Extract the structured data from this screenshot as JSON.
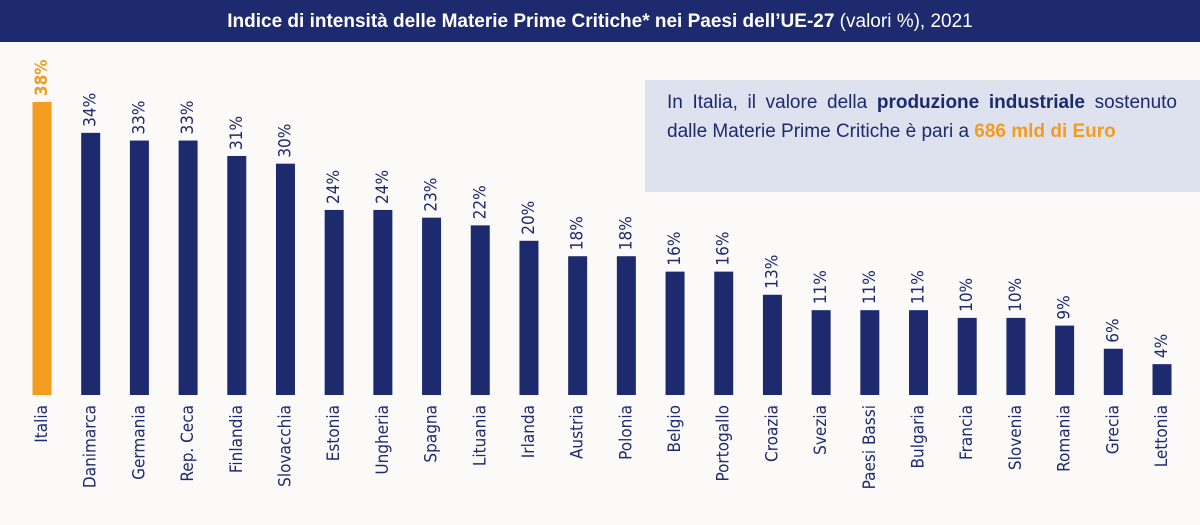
{
  "chart_data": {
    "type": "bar",
    "title": "Indice di intensità delle Materie Prime Critiche* nei Paesi dell’UE-27",
    "subtitle": " (valori %), 2021",
    "categories": [
      "Italia",
      "Danimarca",
      "Germania",
      "Rep. Ceca",
      "Finlandia",
      "Slovacchia",
      "Estonia",
      "Ungheria",
      "Spagna",
      "Lituania",
      "Irlanda",
      "Austria",
      "Polonia",
      "Belgio",
      "Portogallo",
      "Croazia",
      "Svezia",
      "Paesi Bassi",
      "Bulgaria",
      "Francia",
      "Slovenia",
      "Romania",
      "Grecia",
      "Lettonia"
    ],
    "values": [
      38,
      34,
      33,
      33,
      31,
      30,
      24,
      24,
      23,
      22,
      20,
      18,
      18,
      16,
      16,
      13,
      11,
      11,
      11,
      10,
      10,
      9,
      6,
      4
    ],
    "value_labels": [
      "38%",
      "34%",
      "33%",
      "33%",
      "31%",
      "30%",
      "24%",
      "24%",
      "23%",
      "22%",
      "20%",
      "18%",
      "18%",
      "16%",
      "16%",
      "13%",
      "11%",
      "11%",
      "11%",
      "10%",
      "10%",
      "9%",
      "6%",
      "4%"
    ],
    "colors": [
      "#f39c1f",
      "#1e2a6e",
      "#1e2a6e",
      "#1e2a6e",
      "#1e2a6e",
      "#1e2a6e",
      "#1e2a6e",
      "#1e2a6e",
      "#1e2a6e",
      "#1e2a6e",
      "#1e2a6e",
      "#1e2a6e",
      "#1e2a6e",
      "#1e2a6e",
      "#1e2a6e",
      "#1e2a6e",
      "#1e2a6e",
      "#1e2a6e",
      "#1e2a6e",
      "#1e2a6e",
      "#1e2a6e",
      "#1e2a6e",
      "#1e2a6e",
      "#1e2a6e"
    ],
    "annotation": [
      {
        "text": "In Italia, il valore della ",
        "bold": false,
        "color": "#1e2a6e"
      },
      {
        "text": "produzione industriale",
        "bold": true,
        "color": "#1e2a6e"
      },
      {
        "text": " sostenuto dalle Materie Prime Critiche è pari a ",
        "bold": false,
        "color": "#1e2a6e"
      },
      {
        "text": "686 mld di Euro",
        "bold": true,
        "color": "#f39c1f"
      }
    ]
  }
}
